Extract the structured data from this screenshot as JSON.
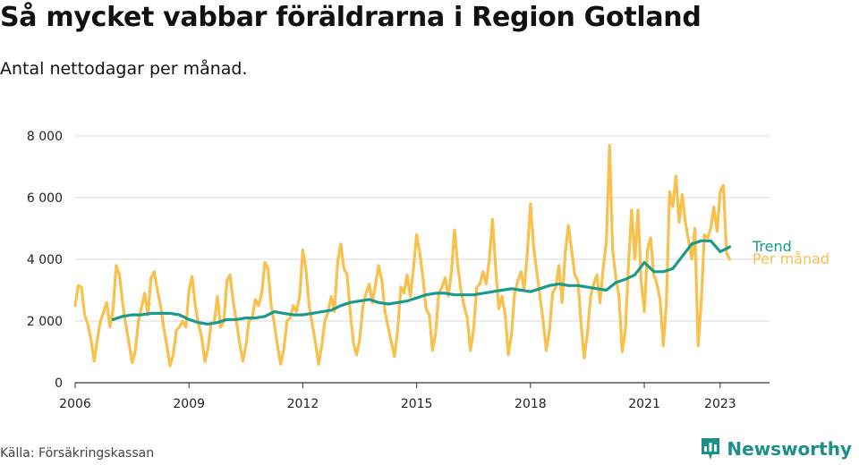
{
  "chart_data": {
    "type": "line",
    "title": "Så mycket vabbar föräldrarna i Region Gotland",
    "subtitle": "Antal nettodagar per månad.",
    "xlabel": "",
    "ylabel": "",
    "xlim": [
      2006,
      2024.3
    ],
    "ylim": [
      0,
      8000
    ],
    "yticks": [
      0,
      2000,
      4000,
      6000,
      8000
    ],
    "ytick_labels": [
      "0",
      "2 000",
      "4 000",
      "6 000",
      "8 000"
    ],
    "xticks": [
      2006,
      2009,
      2012,
      2015,
      2018,
      2021,
      2023
    ],
    "xtick_labels": [
      "2006",
      "2009",
      "2012",
      "2015",
      "2018",
      "2021",
      "2023"
    ],
    "grid": true,
    "legend": "right-end-labels",
    "series": [
      {
        "name": "Per månad",
        "label": "Per månad",
        "color": "#F9C04B",
        "x": [
          2006.0,
          2006.083,
          2006.167,
          2006.25,
          2006.333,
          2006.417,
          2006.5,
          2006.583,
          2006.667,
          2006.75,
          2006.833,
          2006.917,
          2007.0,
          2007.083,
          2007.167,
          2007.25,
          2007.333,
          2007.417,
          2007.5,
          2007.583,
          2007.667,
          2007.75,
          2007.833,
          2007.917,
          2008.0,
          2008.083,
          2008.167,
          2008.25,
          2008.333,
          2008.417,
          2008.5,
          2008.583,
          2008.667,
          2008.75,
          2008.833,
          2008.917,
          2009.0,
          2009.083,
          2009.167,
          2009.25,
          2009.333,
          2009.417,
          2009.5,
          2009.583,
          2009.667,
          2009.75,
          2009.833,
          2009.917,
          2010.0,
          2010.083,
          2010.167,
          2010.25,
          2010.333,
          2010.417,
          2010.5,
          2010.583,
          2010.667,
          2010.75,
          2010.833,
          2010.917,
          2011.0,
          2011.083,
          2011.167,
          2011.25,
          2011.333,
          2011.417,
          2011.5,
          2011.583,
          2011.667,
          2011.75,
          2011.833,
          2011.917,
          2012.0,
          2012.083,
          2012.167,
          2012.25,
          2012.333,
          2012.417,
          2012.5,
          2012.583,
          2012.667,
          2012.75,
          2012.833,
          2012.917,
          2013.0,
          2013.083,
          2013.167,
          2013.25,
          2013.333,
          2013.417,
          2013.5,
          2013.583,
          2013.667,
          2013.75,
          2013.833,
          2013.917,
          2014.0,
          2014.083,
          2014.167,
          2014.25,
          2014.333,
          2014.417,
          2014.5,
          2014.583,
          2014.667,
          2014.75,
          2014.833,
          2014.917,
          2015.0,
          2015.083,
          2015.167,
          2015.25,
          2015.333,
          2015.417,
          2015.5,
          2015.583,
          2015.667,
          2015.75,
          2015.833,
          2015.917,
          2016.0,
          2016.083,
          2016.167,
          2016.25,
          2016.333,
          2016.417,
          2016.5,
          2016.583,
          2016.667,
          2016.75,
          2016.833,
          2016.917,
          2017.0,
          2017.083,
          2017.167,
          2017.25,
          2017.333,
          2017.417,
          2017.5,
          2017.583,
          2017.667,
          2017.75,
          2017.833,
          2017.917,
          2018.0,
          2018.083,
          2018.167,
          2018.25,
          2018.333,
          2018.417,
          2018.5,
          2018.583,
          2018.667,
          2018.75,
          2018.833,
          2018.917,
          2019.0,
          2019.083,
          2019.167,
          2019.25,
          2019.333,
          2019.417,
          2019.5,
          2019.583,
          2019.667,
          2019.75,
          2019.833,
          2019.917,
          2020.0,
          2020.083,
          2020.167,
          2020.25,
          2020.333,
          2020.417,
          2020.5,
          2020.583,
          2020.667,
          2020.75,
          2020.833,
          2020.917,
          2021.0,
          2021.083,
          2021.167,
          2021.25,
          2021.333,
          2021.417,
          2021.5,
          2021.583,
          2021.667,
          2021.75,
          2021.833,
          2021.917,
          2022.0,
          2022.083,
          2022.167,
          2022.25,
          2022.333,
          2022.417,
          2022.5,
          2022.583,
          2022.667,
          2022.75,
          2022.833,
          2022.917,
          2023.0,
          2023.083,
          2023.167,
          2023.25
        ],
        "values": [
          2500,
          3150,
          3100,
          2200,
          1900,
          1400,
          700,
          1400,
          2000,
          2300,
          2600,
          1800,
          2400,
          3800,
          3500,
          2600,
          1900,
          1300,
          650,
          1000,
          2000,
          2450,
          2900,
          2200,
          3400,
          3600,
          3000,
          2500,
          1800,
          1200,
          550,
          900,
          1700,
          1800,
          2000,
          1800,
          3000,
          3450,
          2500,
          1900,
          1500,
          700,
          1100,
          1900,
          2000,
          2800,
          1800,
          2000,
          3300,
          3500,
          2600,
          2000,
          1300,
          700,
          1200,
          2000,
          2100,
          2700,
          2500,
          2900,
          3900,
          3700,
          2500,
          1900,
          1200,
          600,
          1100,
          2000,
          2100,
          2500,
          2300,
          2800,
          4300,
          3700,
          2500,
          1900,
          1300,
          600,
          1200,
          2000,
          2300,
          2800,
          2300,
          3900,
          4500,
          3700,
          3500,
          2300,
          1300,
          900,
          1400,
          2500,
          2900,
          3200,
          2600,
          3200,
          3800,
          3300,
          2300,
          1800,
          1300,
          850,
          1700,
          3100,
          2900,
          3500,
          2800,
          3700,
          4800,
          4200,
          3400,
          2400,
          2200,
          1050,
          1600,
          2900,
          3100,
          3400,
          2800,
          3600,
          4950,
          3800,
          3000,
          2500,
          2100,
          1050,
          1700,
          3100,
          3200,
          3600,
          3200,
          4000,
          5300,
          3700,
          2400,
          2800,
          2200,
          900,
          1600,
          2900,
          3300,
          3600,
          3000,
          4200,
          5800,
          4400,
          3600,
          2800,
          2000,
          1050,
          1700,
          2900,
          3100,
          3800,
          2600,
          4200,
          5100,
          4300,
          3500,
          3300,
          1900,
          800,
          1600,
          2800,
          3200,
          3500,
          2600,
          3700,
          4600,
          7700,
          4300,
          3400,
          2800,
          1000,
          1700,
          3800,
          5600,
          4000,
          5600,
          3300,
          2300,
          4300,
          4700,
          3500,
          3200,
          2700,
          1200,
          2600,
          6200,
          5700,
          6700,
          5200,
          6100,
          5200,
          4600,
          4000,
          5000,
          1200,
          2600,
          4800,
          4700,
          5000,
          5700,
          4900,
          6200,
          6400,
          4200,
          4000
        ]
      },
      {
        "name": "Trend",
        "label": "Trend",
        "color": "#1A9A8C",
        "x": [
          2007.0,
          2007.25,
          2007.5,
          2007.75,
          2008.0,
          2008.25,
          2008.5,
          2008.75,
          2009.0,
          2009.25,
          2009.5,
          2009.75,
          2010.0,
          2010.25,
          2010.5,
          2010.75,
          2011.0,
          2011.25,
          2011.5,
          2011.75,
          2012.0,
          2012.25,
          2012.5,
          2012.75,
          2013.0,
          2013.25,
          2013.5,
          2013.75,
          2014.0,
          2014.25,
          2014.5,
          2014.75,
          2015.0,
          2015.25,
          2015.5,
          2015.75,
          2016.0,
          2016.25,
          2016.5,
          2016.75,
          2017.0,
          2017.25,
          2017.5,
          2017.75,
          2018.0,
          2018.25,
          2018.5,
          2018.75,
          2019.0,
          2019.25,
          2019.5,
          2019.75,
          2020.0,
          2020.25,
          2020.5,
          2020.75,
          2021.0,
          2021.25,
          2021.5,
          2021.75,
          2022.0,
          2022.25,
          2022.5,
          2022.75,
          2023.0,
          2023.25
        ],
        "values": [
          2050,
          2150,
          2200,
          2200,
          2250,
          2250,
          2250,
          2200,
          2050,
          1950,
          1900,
          1950,
          2050,
          2050,
          2100,
          2100,
          2150,
          2300,
          2250,
          2200,
          2200,
          2250,
          2300,
          2350,
          2500,
          2600,
          2650,
          2700,
          2600,
          2550,
          2600,
          2650,
          2750,
          2850,
          2900,
          2900,
          2850,
          2850,
          2850,
          2900,
          2950,
          3000,
          3050,
          3000,
          2950,
          3050,
          3150,
          3200,
          3150,
          3150,
          3100,
          3050,
          3000,
          3250,
          3350,
          3500,
          3900,
          3600,
          3600,
          3700,
          4100,
          4500,
          4600,
          4600,
          4250,
          4400
        ]
      }
    ]
  },
  "source": "Källa: Försäkringskassan",
  "brand": {
    "name": "Newsworthy",
    "icon": "bar-chart-icon",
    "color": "#1b8f8a"
  }
}
